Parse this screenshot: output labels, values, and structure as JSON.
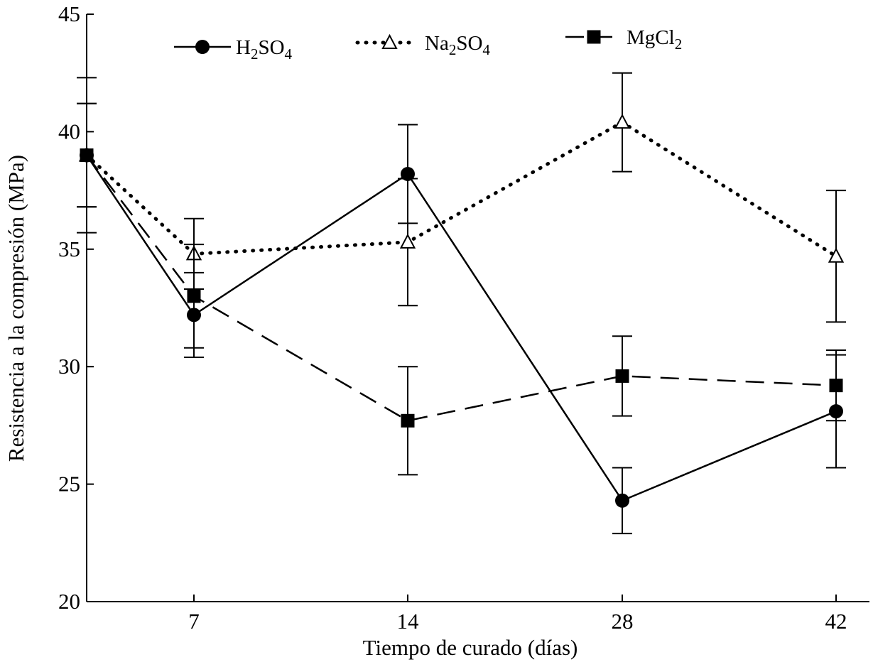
{
  "chart_data": {
    "type": "line",
    "title": "",
    "xlabel": "Tiempo de curado (días)",
    "ylabel": "Resistencia a la compresión (MPa)",
    "ylim": [
      20,
      45
    ],
    "yticks": [
      "20",
      "25",
      "30",
      "35",
      "40",
      "45"
    ],
    "categories": [
      "",
      "7",
      "14",
      "28",
      "42"
    ],
    "legend_position": "top",
    "series": [
      {
        "name": "H2SO4",
        "label_parts": [
          {
            "t": "H",
            "sub": false
          },
          {
            "t": "2",
            "sub": true
          },
          {
            "t": "SO",
            "sub": false
          },
          {
            "t": "4",
            "sub": true
          }
        ],
        "style": "solid",
        "marker": "circle",
        "values": [
          39.0,
          32.2,
          38.2,
          24.3,
          28.1
        ],
        "errors": [
          3.3,
          1.8,
          2.1,
          1.4,
          2.4
        ]
      },
      {
        "name": "Na2SO4",
        "label_parts": [
          {
            "t": "Na",
            "sub": false
          },
          {
            "t": "2",
            "sub": true
          },
          {
            "t": "SO",
            "sub": false
          },
          {
            "t": "4",
            "sub": true
          }
        ],
        "style": "dotted",
        "marker": "triangle-open",
        "values": [
          39.0,
          34.8,
          35.3,
          40.4,
          34.7
        ],
        "errors": [
          2.2,
          1.5,
          2.7,
          2.1,
          2.8
        ]
      },
      {
        "name": "MgCl2",
        "label_parts": [
          {
            "t": "MgCl",
            "sub": false
          },
          {
            "t": "2",
            "sub": true
          }
        ],
        "style": "dashed",
        "marker": "square",
        "values": [
          39.0,
          33.0,
          27.7,
          29.6,
          29.2
        ],
        "errors": [
          2.2,
          2.2,
          2.3,
          1.7,
          1.5
        ]
      }
    ]
  }
}
